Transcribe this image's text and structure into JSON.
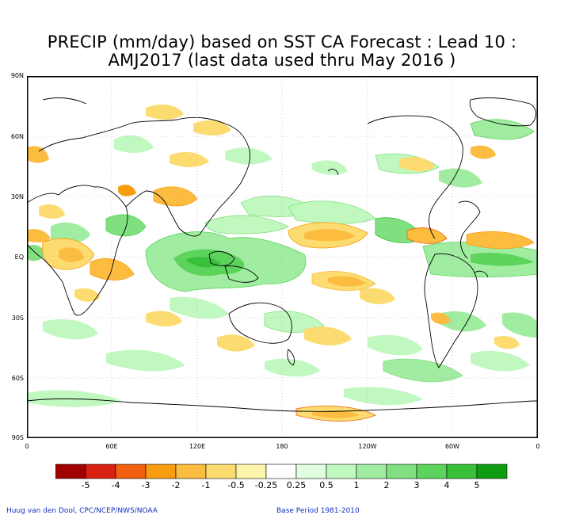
{
  "title": {
    "line1": "PRECIP (mm/day) based on SST CA Forecast : Lead 10 :",
    "line2": "AMJ2017 (last data used thru May 2016 )"
  },
  "map": {
    "lat_labels": [
      "90N",
      "60N",
      "30N",
      "EQ",
      "30S",
      "60S",
      "90S"
    ],
    "lon_labels": [
      "0",
      "60E",
      "120E",
      "180",
      "120W",
      "60W",
      "0"
    ],
    "grid": true,
    "projection": "equirectangular, 0 to 360 longitude"
  },
  "legend": {
    "labels": [
      "-5",
      "-4",
      "-3",
      "-2",
      "-1",
      "-0.5",
      "-0.25",
      "0.25",
      "0.5",
      "1",
      "2",
      "3",
      "4",
      "5"
    ],
    "colors": [
      "#a00000",
      "#d82010",
      "#f06010",
      "#f89c10",
      "#fcbc40",
      "#fcdc70",
      "#fcf4a8",
      "#ffffff",
      "#e0ffe0",
      "#c0f8c0",
      "#a0eca0",
      "#80e080",
      "#5cd45c",
      "#38c038",
      "#109c10"
    ]
  },
  "credits": {
    "left": "Huug van den Dool, CPC/NCEP/NWS/NOAA",
    "right": "Base Period 1981-2010"
  }
}
